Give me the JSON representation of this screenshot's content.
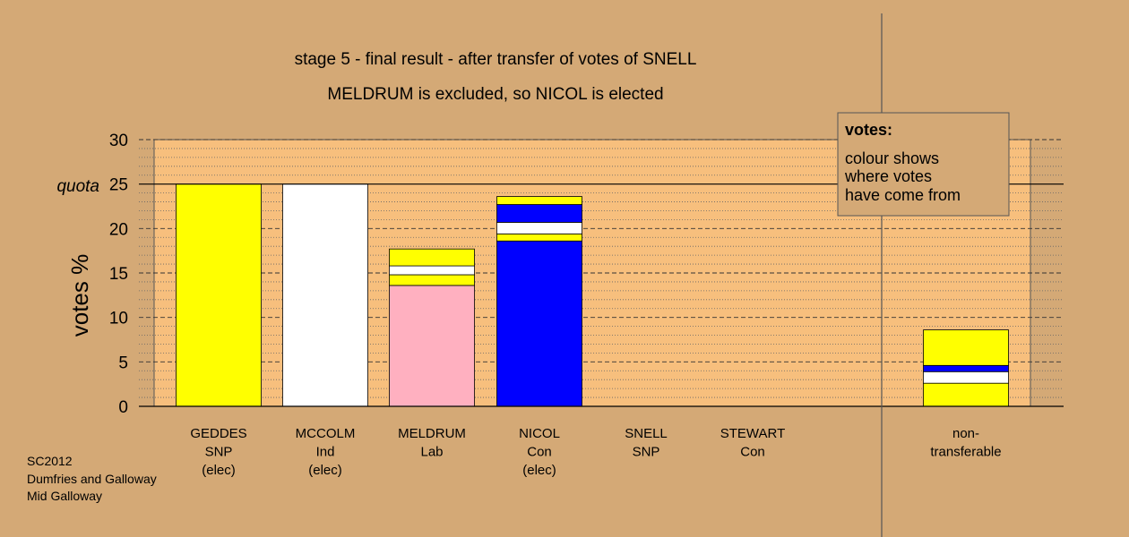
{
  "chart_data": {
    "type": "bar",
    "title_line1": "stage 5 - final result - after transfer of votes of SNELL",
    "title_line2": "MELDRUM is excluded, so NICOL is elected",
    "ylabel": "votes %",
    "ylim": [
      0,
      30
    ],
    "yticks": [
      "0",
      "5",
      "10",
      "15",
      "20",
      "25",
      "30"
    ],
    "quota": 25,
    "quota_label": "quota",
    "grid": true,
    "categories": [
      {
        "lines": [
          "GEDDES",
          "SNP",
          "(elec)"
        ]
      },
      {
        "lines": [
          "MCCOLM",
          "Ind",
          "(elec)"
        ]
      },
      {
        "lines": [
          "MELDRUM",
          "Lab"
        ]
      },
      {
        "lines": [
          "NICOL",
          "Con",
          "(elec)"
        ]
      },
      {
        "lines": [
          "SNELL",
          "SNP"
        ]
      },
      {
        "lines": [
          "STEWART",
          "Con"
        ]
      },
      {
        "lines": [
          "non-",
          "transferable"
        ]
      }
    ],
    "stacks": [
      [
        {
          "value": 25.0,
          "color": "#ffff00"
        }
      ],
      [
        {
          "value": 25.0,
          "color": "#ffffff"
        }
      ],
      [
        {
          "value": 13.6,
          "color": "#ffb0c0"
        },
        {
          "value": 1.2,
          "color": "#ffff00"
        },
        {
          "value": 1.0,
          "color": "#ffffff"
        },
        {
          "value": 1.9,
          "color": "#ffff00"
        }
      ],
      [
        {
          "value": 18.6,
          "color": "#0000ff"
        },
        {
          "value": 0.8,
          "color": "#ffff00"
        },
        {
          "value": 1.3,
          "color": "#ffffff"
        },
        {
          "value": 2.0,
          "color": "#0000ff"
        },
        {
          "value": 0.9,
          "color": "#ffff00"
        }
      ],
      [],
      [],
      [
        {
          "value": 2.6,
          "color": "#ffff00"
        },
        {
          "value": 1.3,
          "color": "#ffffff"
        },
        {
          "value": 0.7,
          "color": "#0000ff"
        },
        {
          "value": 4.0,
          "color": "#ffff00"
        }
      ]
    ],
    "legend": {
      "title": "votes:",
      "lines": [
        "colour shows",
        "where votes",
        "have come from"
      ]
    }
  },
  "footer": [
    "SC2012",
    "Dumfries and Galloway",
    "Mid Galloway"
  ],
  "colors": {
    "background": "#d4a976",
    "plot_area": "#f7bf7d",
    "legend_box": "#d4a976"
  }
}
